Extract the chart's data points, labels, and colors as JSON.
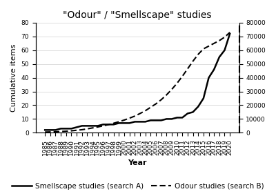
{
  "title": "\"Odour\" / \"Smellscape\" studies",
  "xlabel": "Year",
  "ylabel_left": "Cumulative items",
  "years": [
    1985,
    1986,
    1987,
    1988,
    1989,
    1990,
    1991,
    1992,
    1993,
    1994,
    1995,
    1996,
    1997,
    1998,
    1999,
    2000,
    2001,
    2002,
    2003,
    2004,
    2005,
    2006,
    2007,
    2008,
    2009,
    2010,
    2011,
    2012,
    2013,
    2014,
    2015,
    2016,
    2017,
    2018,
    2019,
    2020
  ],
  "smellscape": [
    2,
    2,
    2,
    3,
    3,
    3,
    4,
    5,
    5,
    5,
    5,
    6,
    6,
    6,
    7,
    7,
    7,
    8,
    8,
    8,
    9,
    9,
    9,
    10,
    10,
    11,
    11,
    14,
    15,
    19,
    25,
    40,
    46,
    55,
    60,
    72
  ],
  "odour": [
    500,
    600,
    700,
    900,
    1100,
    1400,
    1800,
    2200,
    2800,
    3500,
    4200,
    5000,
    5900,
    6900,
    8000,
    9200,
    10600,
    12100,
    14000,
    16000,
    18500,
    21000,
    24000,
    27500,
    31500,
    36000,
    41000,
    46500,
    52000,
    57000,
    61000,
    63000,
    65000,
    67000,
    69500,
    73000
  ],
  "ylim_left": [
    0,
    80
  ],
  "ylim_right": [
    0,
    80000
  ],
  "yticks_left": [
    0,
    10,
    20,
    30,
    40,
    50,
    60,
    70,
    80
  ],
  "yticks_right": [
    0,
    10000,
    20000,
    30000,
    40000,
    50000,
    60000,
    70000,
    80000
  ],
  "legend_smellscape": "Smellscape studies (search A)",
  "legend_odour": "Odour studies (search B)",
  "background_color": "#ffffff",
  "line_color": "#000000",
  "title_fontsize": 10,
  "label_fontsize": 8,
  "tick_fontsize": 6.5,
  "legend_fontsize": 7.5
}
